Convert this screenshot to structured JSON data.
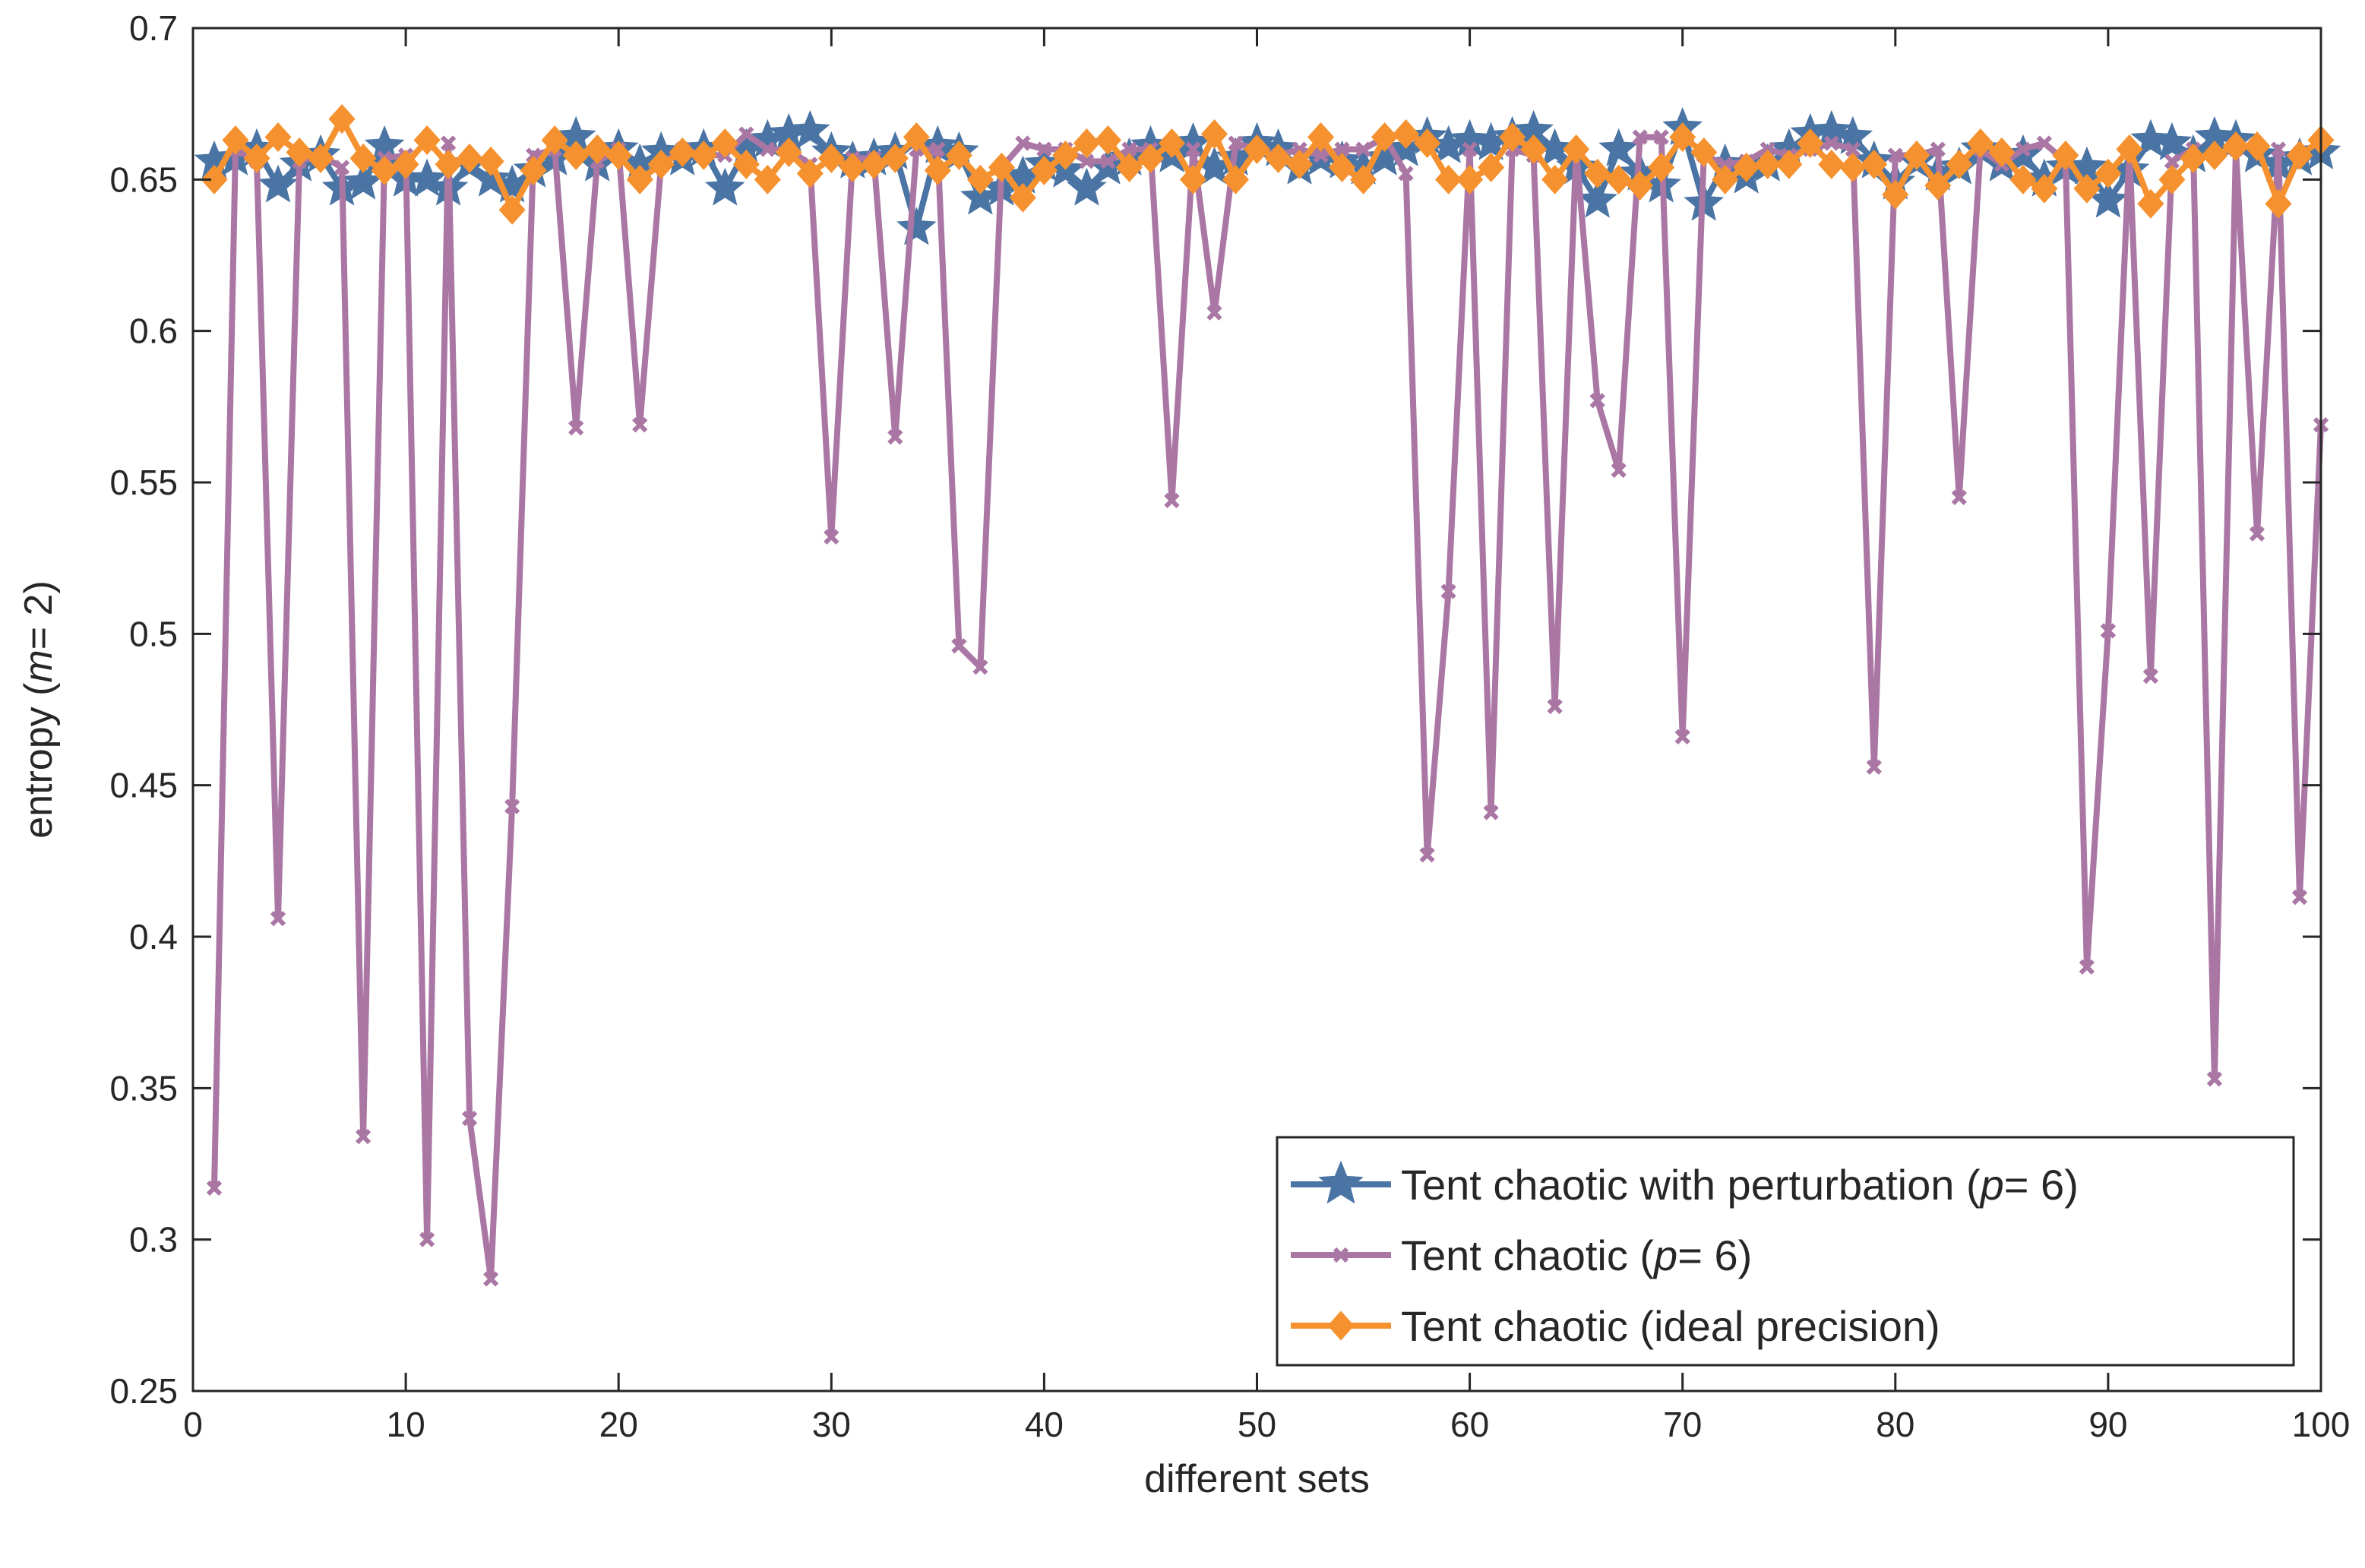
{
  "chart_data": {
    "type": "line",
    "title": "",
    "xlabel": "different sets",
    "ylabel": {
      "prefix": "entropy (",
      "italic": "m",
      "suffix": "= 2)"
    },
    "xlim": [
      0,
      100
    ],
    "ylim": [
      0.25,
      0.7
    ],
    "xticks": [
      0,
      10,
      20,
      30,
      40,
      50,
      60,
      70,
      80,
      90,
      100
    ],
    "xtick_labels": [
      "0",
      "10",
      "20",
      "30",
      "40",
      "50",
      "60",
      "70",
      "80",
      "90",
      "100"
    ],
    "yticks": [
      0.25,
      0.3,
      0.35,
      0.4,
      0.45,
      0.5,
      0.55,
      0.6,
      0.65,
      0.7
    ],
    "ytick_labels": [
      "0.25",
      "0.3",
      "0.35",
      "0.4",
      "0.45",
      "0.5",
      "0.55",
      "0.6",
      "0.65",
      "0.7"
    ],
    "grid": false,
    "legend_position": "bottom-right",
    "series": [
      {
        "name": "Tent chaotic with perturbation (p= 6)",
        "legend_prefix": "Tent chaotic with perturbation (",
        "legend_italic": "p",
        "legend_suffix": "= 6)",
        "color": "#4a74a4",
        "marker": "star",
        "x": [
          1,
          2,
          3,
          4,
          5,
          6,
          7,
          8,
          9,
          10,
          11,
          12,
          13,
          14,
          15,
          16,
          17,
          18,
          19,
          20,
          21,
          22,
          23,
          24,
          25,
          26,
          27,
          28,
          29,
          30,
          31,
          32,
          33,
          34,
          35,
          36,
          37,
          38,
          39,
          40,
          41,
          42,
          43,
          44,
          45,
          46,
          47,
          48,
          49,
          50,
          51,
          52,
          53,
          54,
          55,
          56,
          57,
          58,
          59,
          60,
          61,
          62,
          63,
          64,
          65,
          66,
          67,
          68,
          69,
          70,
          71,
          72,
          73,
          74,
          75,
          76,
          77,
          78,
          79,
          80,
          81,
          82,
          83,
          84,
          85,
          86,
          87,
          88,
          89,
          90,
          91,
          92,
          93,
          94,
          95,
          96,
          97,
          98,
          99,
          100
        ],
        "values": [
          0.656,
          0.657,
          0.66,
          0.648,
          0.655,
          0.658,
          0.647,
          0.649,
          0.661,
          0.65,
          0.65,
          0.647,
          0.655,
          0.65,
          0.648,
          0.653,
          0.657,
          0.664,
          0.655,
          0.66,
          0.655,
          0.659,
          0.657,
          0.66,
          0.647,
          0.66,
          0.663,
          0.665,
          0.666,
          0.659,
          0.656,
          0.657,
          0.659,
          0.634,
          0.661,
          0.659,
          0.644,
          0.647,
          0.651,
          0.655,
          0.653,
          0.647,
          0.654,
          0.657,
          0.661,
          0.658,
          0.662,
          0.654,
          0.657,
          0.662,
          0.66,
          0.654,
          0.657,
          0.656,
          0.654,
          0.657,
          0.66,
          0.664,
          0.661,
          0.663,
          0.662,
          0.664,
          0.666,
          0.66,
          0.654,
          0.643,
          0.66,
          0.652,
          0.648,
          0.667,
          0.642,
          0.655,
          0.651,
          0.655,
          0.66,
          0.665,
          0.666,
          0.664,
          0.656,
          0.649,
          0.656,
          0.652,
          0.654,
          0.66,
          0.655,
          0.658,
          0.65,
          0.654,
          0.654,
          0.643,
          0.653,
          0.663,
          0.662,
          0.658,
          0.664,
          0.663,
          0.658,
          0.655,
          0.657,
          0.659
        ]
      },
      {
        "name": "Tent chaotic (p= 6)",
        "legend_prefix": "Tent chaotic (",
        "legend_italic": "p",
        "legend_suffix": "= 6)",
        "color": "#aa76a4",
        "marker": "x",
        "x": [
          1,
          2,
          3,
          4,
          5,
          6,
          7,
          8,
          9,
          10,
          11,
          12,
          13,
          14,
          15,
          16,
          17,
          18,
          19,
          20,
          21,
          22,
          23,
          24,
          25,
          26,
          27,
          28,
          29,
          30,
          31,
          32,
          33,
          34,
          35,
          36,
          37,
          38,
          39,
          40,
          41,
          42,
          43,
          44,
          45,
          46,
          47,
          48,
          49,
          50,
          51,
          52,
          53,
          54,
          55,
          56,
          57,
          58,
          59,
          60,
          61,
          62,
          63,
          64,
          65,
          66,
          67,
          68,
          69,
          70,
          71,
          72,
          73,
          74,
          75,
          76,
          77,
          78,
          79,
          80,
          81,
          82,
          83,
          84,
          85,
          86,
          87,
          88,
          89,
          90,
          91,
          92,
          93,
          94,
          95,
          96,
          97,
          98,
          99,
          100
        ],
        "values": [
          0.317,
          0.66,
          0.656,
          0.406,
          0.656,
          0.658,
          0.654,
          0.334,
          0.657,
          0.658,
          0.3,
          0.662,
          0.34,
          0.287,
          0.443,
          0.658,
          0.66,
          0.568,
          0.656,
          0.66,
          0.569,
          0.655,
          0.66,
          0.658,
          0.658,
          0.665,
          0.66,
          0.66,
          0.655,
          0.532,
          0.657,
          0.657,
          0.565,
          0.66,
          0.66,
          0.496,
          0.489,
          0.654,
          0.662,
          0.66,
          0.66,
          0.656,
          0.656,
          0.66,
          0.66,
          0.544,
          0.66,
          0.606,
          0.662,
          0.66,
          0.658,
          0.66,
          0.658,
          0.66,
          0.66,
          0.664,
          0.652,
          0.427,
          0.514,
          0.66,
          0.441,
          0.66,
          0.658,
          0.476,
          0.66,
          0.577,
          0.554,
          0.664,
          0.664,
          0.466,
          0.658,
          0.655,
          0.656,
          0.66,
          0.658,
          0.66,
          0.662,
          0.66,
          0.456,
          0.658,
          0.658,
          0.66,
          0.545,
          0.66,
          0.655,
          0.66,
          0.662,
          0.656,
          0.39,
          0.501,
          0.66,
          0.486,
          0.656,
          0.66,
          0.353,
          0.66,
          0.533,
          0.66,
          0.413,
          0.569
        ]
      },
      {
        "name": "Tent chaotic (ideal precision)",
        "legend_prefix": "Tent chaotic (ideal precision)",
        "legend_italic": "",
        "legend_suffix": "",
        "color": "#f5922f",
        "marker": "diamond",
        "x": [
          1,
          2,
          3,
          4,
          5,
          6,
          7,
          8,
          9,
          10,
          11,
          12,
          13,
          14,
          15,
          16,
          17,
          18,
          19,
          20,
          21,
          22,
          23,
          24,
          25,
          26,
          27,
          28,
          29,
          30,
          31,
          32,
          33,
          34,
          35,
          36,
          37,
          38,
          39,
          40,
          41,
          42,
          43,
          44,
          45,
          46,
          47,
          48,
          49,
          50,
          51,
          52,
          53,
          54,
          55,
          56,
          57,
          58,
          59,
          60,
          61,
          62,
          63,
          64,
          65,
          66,
          67,
          68,
          69,
          70,
          71,
          72,
          73,
          74,
          75,
          76,
          77,
          78,
          79,
          80,
          81,
          82,
          83,
          84,
          85,
          86,
          87,
          88,
          89,
          90,
          91,
          92,
          93,
          94,
          95,
          96,
          97,
          98,
          99,
          100
        ],
        "values": [
          0.65,
          0.663,
          0.657,
          0.664,
          0.659,
          0.657,
          0.67,
          0.657,
          0.653,
          0.655,
          0.663,
          0.655,
          0.657,
          0.656,
          0.64,
          0.653,
          0.663,
          0.658,
          0.66,
          0.658,
          0.65,
          0.655,
          0.659,
          0.658,
          0.662,
          0.655,
          0.65,
          0.659,
          0.652,
          0.657,
          0.654,
          0.655,
          0.657,
          0.664,
          0.653,
          0.658,
          0.65,
          0.654,
          0.644,
          0.653,
          0.658,
          0.662,
          0.663,
          0.654,
          0.657,
          0.662,
          0.65,
          0.665,
          0.65,
          0.66,
          0.657,
          0.655,
          0.664,
          0.654,
          0.65,
          0.664,
          0.665,
          0.662,
          0.65,
          0.65,
          0.654,
          0.664,
          0.66,
          0.65,
          0.66,
          0.652,
          0.65,
          0.648,
          0.654,
          0.664,
          0.659,
          0.65,
          0.654,
          0.655,
          0.655,
          0.662,
          0.655,
          0.654,
          0.655,
          0.645,
          0.658,
          0.648,
          0.655,
          0.662,
          0.659,
          0.65,
          0.647,
          0.658,
          0.647,
          0.652,
          0.66,
          0.642,
          0.65,
          0.657,
          0.658,
          0.661,
          0.661,
          0.642,
          0.658,
          0.663
        ]
      }
    ]
  }
}
